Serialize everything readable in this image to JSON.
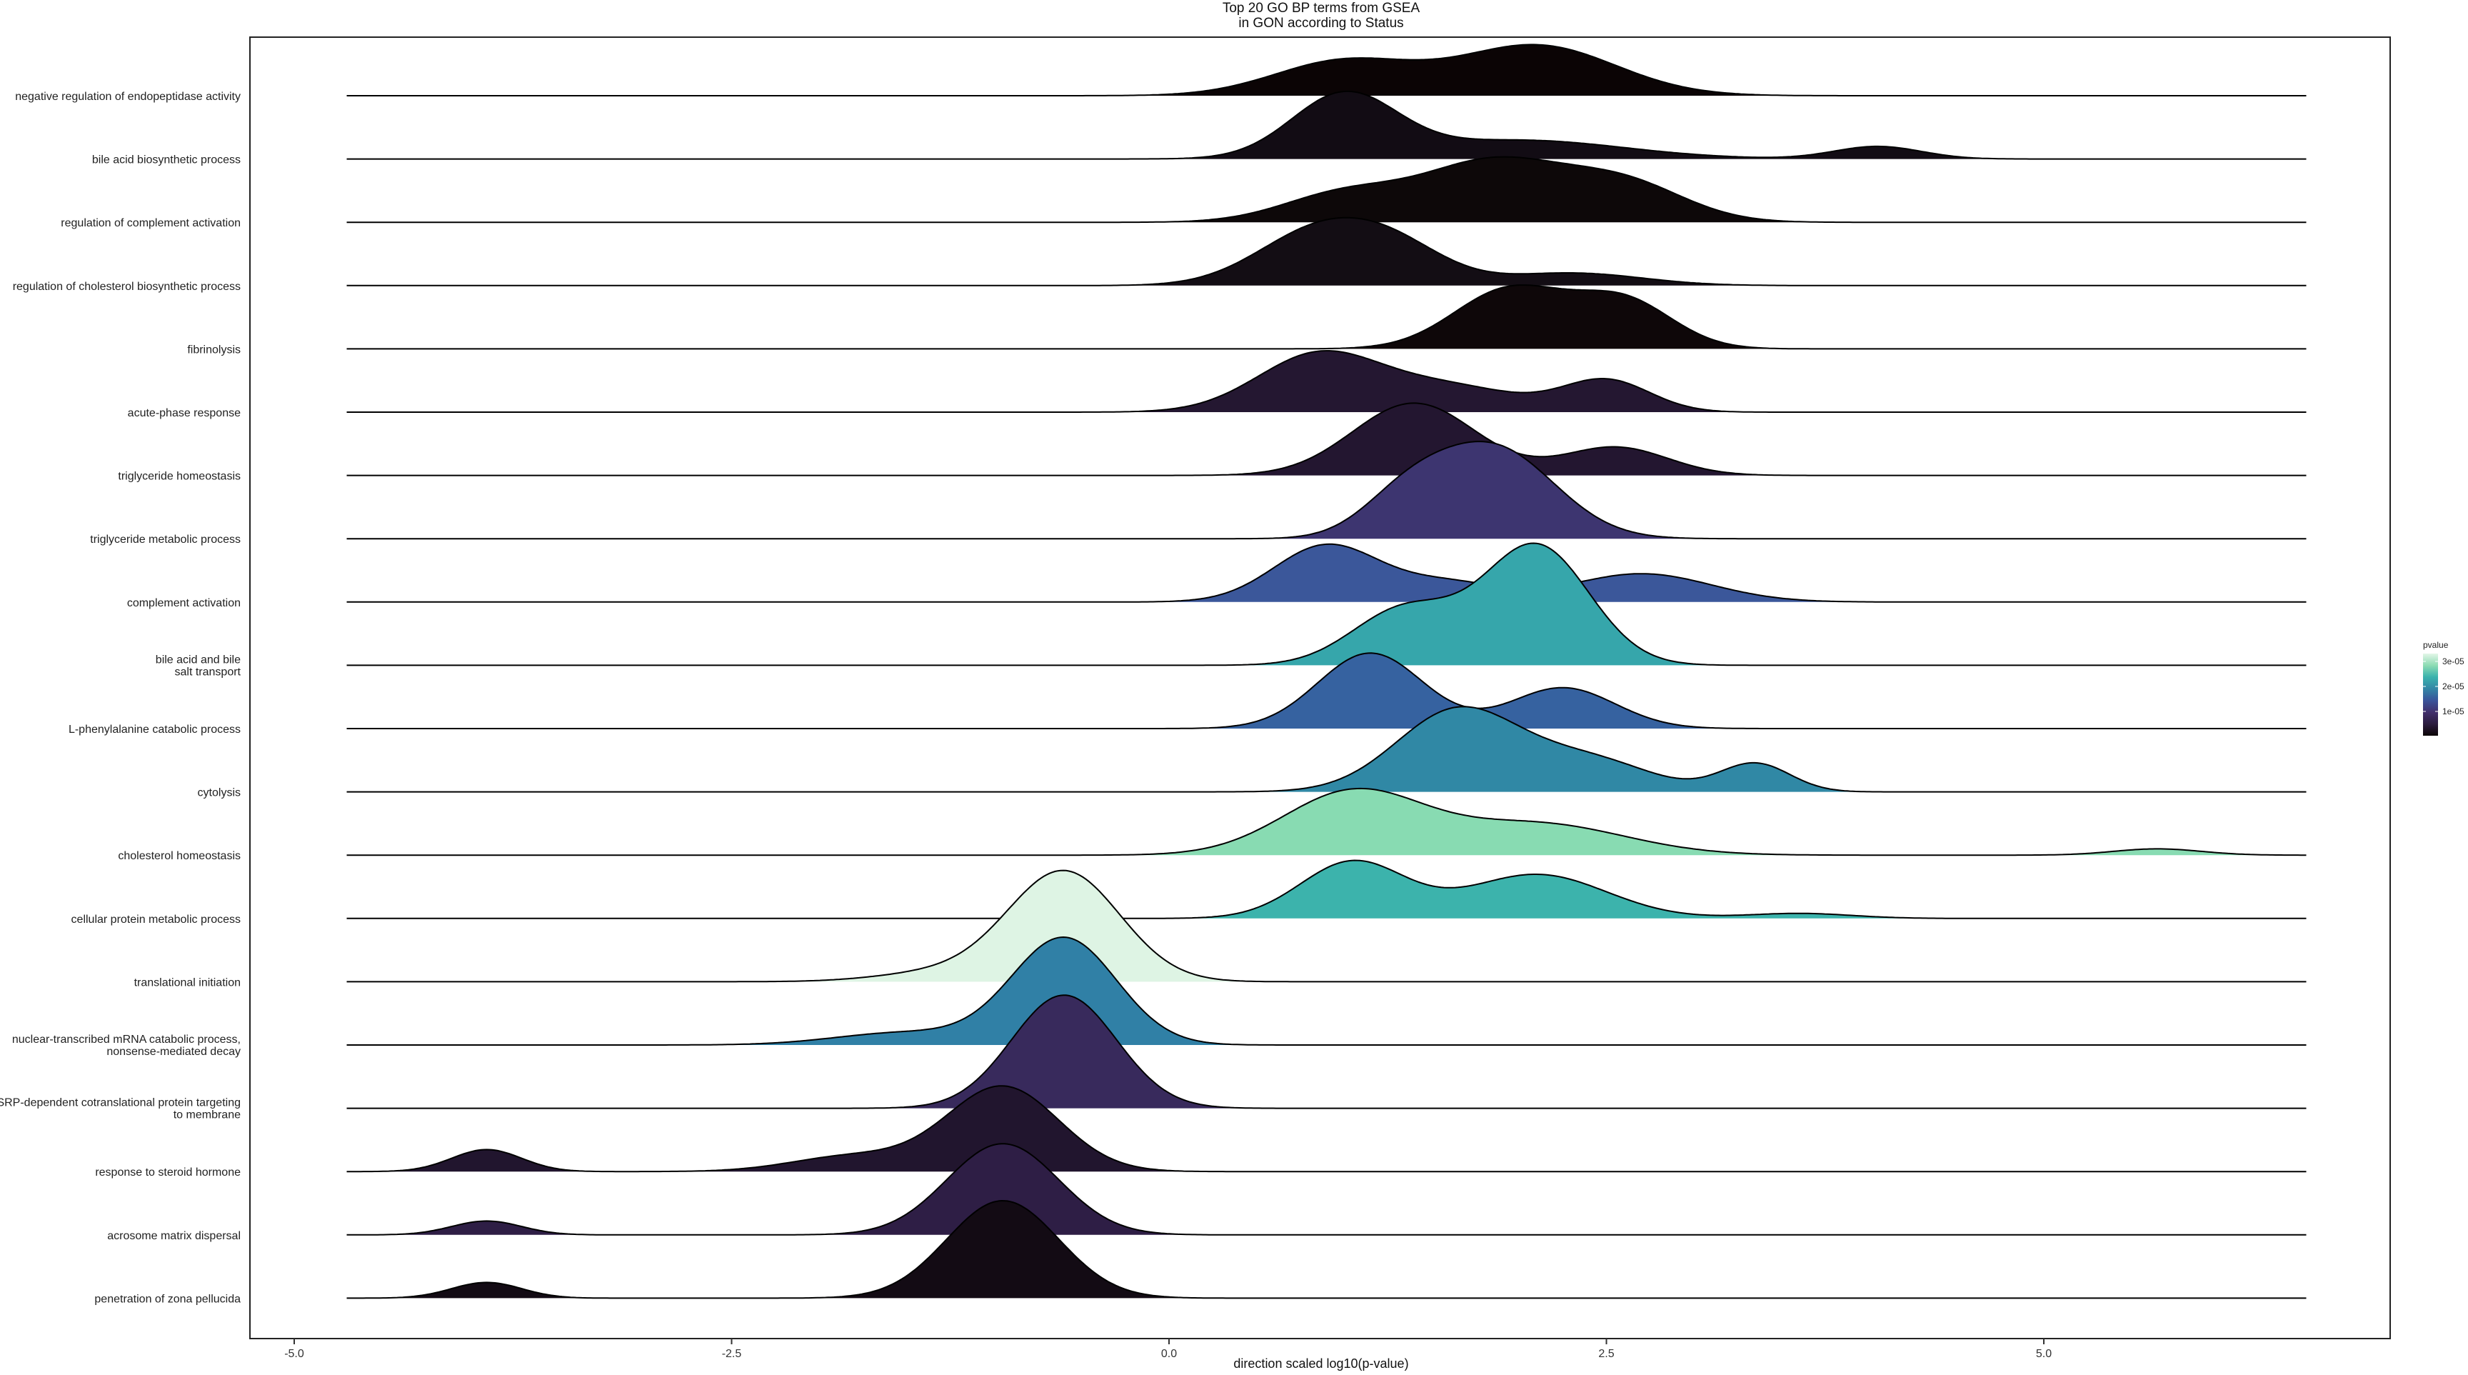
{
  "chart_data": {
    "type": "ridgeline",
    "title": "Top 20 GO BP terms from GSEA",
    "subtitle": "in GON according to Status",
    "xlabel": "direction scaled log10(p-value)",
    "xlim": [
      -5.5,
      7.0
    ],
    "xticks": [
      -5.0,
      -2.5,
      0.0,
      2.5,
      5.0
    ],
    "xtick_labels": [
      "-5.0",
      "-2.5",
      "0.0",
      "2.5",
      "5.0"
    ],
    "baseline_range": [
      -4.7,
      6.5
    ],
    "grid": false,
    "legend": {
      "title": "pvalue",
      "position": "right",
      "ticks": [
        "3e-05",
        "2e-05",
        "1e-05"
      ],
      "gradient": [
        "#e3f6e8",
        "#8edcb4",
        "#3ab2ad",
        "#3486a6",
        "#3a539a",
        "#412f6c",
        "#2b1c3e",
        "#0b0405"
      ]
    },
    "series": [
      {
        "name": "negative regulation of endopeptidase activity",
        "color": "#0b0405",
        "peaks": [
          [
            1.0,
            0.55,
            0.4
          ],
          [
            2.1,
            0.8,
            0.45
          ]
        ]
      },
      {
        "name": "bile acid biosynthetic process",
        "color": "#120c14",
        "peaks": [
          [
            1.0,
            1.0,
            0.3
          ],
          [
            2.0,
            0.3,
            0.6
          ],
          [
            4.05,
            0.2,
            0.25
          ]
        ]
      },
      {
        "name": "regulation of complement activation",
        "color": "#0d0809",
        "peaks": [
          [
            1.0,
            0.45,
            0.35
          ],
          [
            1.85,
            0.95,
            0.4
          ],
          [
            2.6,
            0.6,
            0.35
          ]
        ]
      },
      {
        "name": "regulation of cholesterol biosynthetic process",
        "color": "#130d14",
        "peaks": [
          [
            0.85,
            0.85,
            0.35
          ],
          [
            1.3,
            0.5,
            0.3
          ],
          [
            2.3,
            0.2,
            0.4
          ]
        ]
      },
      {
        "name": "fibrinolysis",
        "color": "#0e0709",
        "peaks": [
          [
            1.95,
            0.95,
            0.32
          ],
          [
            2.6,
            0.75,
            0.28
          ]
        ]
      },
      {
        "name": "acute-phase response",
        "color": "#241731",
        "peaks": [
          [
            0.85,
            0.9,
            0.35
          ],
          [
            1.6,
            0.4,
            0.4
          ],
          [
            2.5,
            0.5,
            0.25
          ]
        ]
      },
      {
        "name": "triglyceride homeostasis",
        "color": "#231630",
        "peaks": [
          [
            1.4,
            1.15,
            0.35
          ],
          [
            2.55,
            0.45,
            0.3
          ]
        ]
      },
      {
        "name": "triglyceride metabolic process",
        "color": "#3d3570",
        "peaks": [
          [
            1.35,
            0.55,
            0.25
          ],
          [
            1.85,
            1.45,
            0.35
          ]
        ]
      },
      {
        "name": "complement activation",
        "color": "#3b579a",
        "peaks": [
          [
            0.9,
            0.9,
            0.3
          ],
          [
            1.6,
            0.3,
            0.3
          ],
          [
            2.7,
            0.45,
            0.4
          ]
        ]
      },
      {
        "name": "bile acid and bile salt transport",
        "color": "#36a6ab",
        "peaks": [
          [
            1.35,
            0.9,
            0.3
          ],
          [
            2.1,
            1.9,
            0.3
          ]
        ]
      },
      {
        "name": "L-phenylalanine catabolic process",
        "color": "#3662a0",
        "peaks": [
          [
            1.15,
            1.2,
            0.3
          ],
          [
            2.25,
            0.65,
            0.3
          ]
        ]
      },
      {
        "name": "cytolysis",
        "color": "#3088a5",
        "peaks": [
          [
            1.65,
            1.3,
            0.35
          ],
          [
            2.4,
            0.5,
            0.35
          ],
          [
            3.35,
            0.45,
            0.2
          ]
        ]
      },
      {
        "name": "cholesterol homeostasis",
        "color": "#88dbb2",
        "peaks": [
          [
            1.05,
            1.0,
            0.4
          ],
          [
            2.1,
            0.5,
            0.5
          ],
          [
            5.65,
            0.1,
            0.25
          ]
        ]
      },
      {
        "name": "cellular protein metabolic process",
        "color": "#3cb3ac",
        "peaks": [
          [
            1.05,
            0.9,
            0.3
          ],
          [
            2.1,
            0.7,
            0.4
          ],
          [
            3.6,
            0.08,
            0.3
          ]
        ]
      },
      {
        "name": "translational initiation",
        "color": "#def4e4",
        "peaks": [
          [
            -0.6,
            1.75,
            0.32
          ],
          [
            -1.3,
            0.15,
            0.35
          ]
        ]
      },
      {
        "name": "nuclear-transcribed mRNA catabolic process, nonsense-mediated decay",
        "color": "#3080a6",
        "peaks": [
          [
            -0.6,
            1.7,
            0.3
          ],
          [
            -1.5,
            0.2,
            0.4
          ]
        ]
      },
      {
        "name": "SRP-dependent cotranslational protein targeting to membrane",
        "color": "#382a5c",
        "peaks": [
          [
            -0.6,
            1.8,
            0.3
          ]
        ]
      },
      {
        "name": "response to steroid hormone",
        "color": "#21152e",
        "peaks": [
          [
            -3.9,
            0.35,
            0.2
          ],
          [
            -0.95,
            1.35,
            0.32
          ],
          [
            -1.8,
            0.25,
            0.35
          ]
        ]
      },
      {
        "name": "acrosome matrix dispersal",
        "color": "#2e1e45",
        "peaks": [
          [
            -3.9,
            0.22,
            0.2
          ],
          [
            -0.95,
            1.45,
            0.32
          ]
        ]
      },
      {
        "name": "penetration of zona pellucida",
        "color": "#130b14",
        "peaks": [
          [
            -3.9,
            0.25,
            0.2
          ],
          [
            -0.95,
            1.55,
            0.32
          ]
        ]
      }
    ]
  },
  "ylabels": [
    [
      "negative regulation of endopeptidase activity"
    ],
    [
      "bile acid biosynthetic process"
    ],
    [
      "regulation of complement activation"
    ],
    [
      "regulation of cholesterol biosynthetic process"
    ],
    [
      "fibrinolysis"
    ],
    [
      "acute-phase response"
    ],
    [
      "triglyceride homeostasis"
    ],
    [
      "triglyceride metabolic process"
    ],
    [
      "complement activation"
    ],
    [
      "bile acid and bile",
      "salt transport"
    ],
    [
      "L-phenylalanine catabolic process"
    ],
    [
      "cytolysis"
    ],
    [
      "cholesterol homeostasis"
    ],
    [
      "cellular protein metabolic process"
    ],
    [
      "translational initiation"
    ],
    [
      "nuclear-transcribed mRNA catabolic process,",
      "nonsense-mediated decay"
    ],
    [
      "SRP-dependent cotranslational protein targeting",
      "to membrane"
    ],
    [
      "response to steroid hormone"
    ],
    [
      "acrosome matrix dispersal"
    ],
    [
      "penetration of zona pellucida"
    ]
  ]
}
